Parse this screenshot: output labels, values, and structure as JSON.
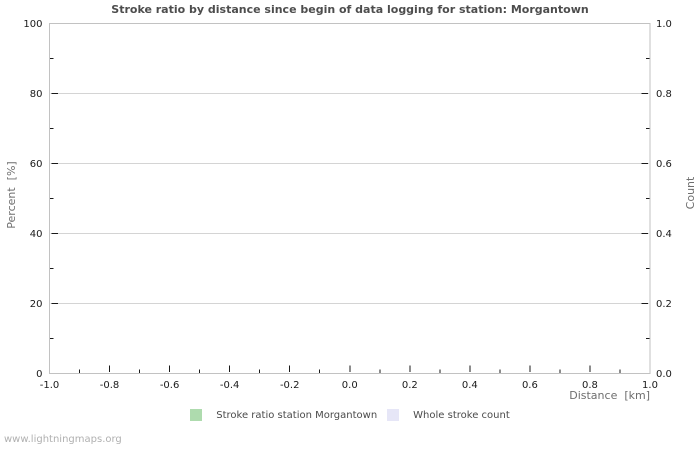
{
  "page": {
    "watermark": "www.lightningmaps.org",
    "background": "#ffffff"
  },
  "colors": {
    "title_text": "#4d4d4d",
    "tick_text": "#1a1a1a",
    "axis_label_text": "#6e6e6e",
    "legend_text": "#4a4a4a",
    "watermark_text": "#b0b0b0",
    "plot_border": "#c2c2c2",
    "gridline": "#d4d4d4",
    "tick_mark": "#1a1a1a",
    "stroke_ratio_green": "#aedbae",
    "whole_count_lavender": "#e6e6f7"
  },
  "chart_data": {
    "type": "line",
    "title": "Stroke ratio by distance since begin of data logging for station: Morgantown",
    "x_axis": {
      "label": "Distance  [km]",
      "min": -1.0,
      "max": 1.0,
      "major_ticks": [
        -1.0,
        -0.8,
        -0.6,
        -0.4,
        -0.2,
        0.0,
        0.2,
        0.4,
        0.6,
        0.8,
        1.0
      ],
      "tick_labels": [
        "-1.0",
        "-0.8",
        "-0.6",
        "-0.4",
        "-0.2",
        "0.0",
        "0.2",
        "0.4",
        "0.6",
        "0.8",
        "1.0"
      ],
      "minor_ticks": [
        -0.9,
        -0.7,
        -0.5,
        -0.3,
        -0.1,
        0.1,
        0.3,
        0.5,
        0.7,
        0.9
      ]
    },
    "y_axis_left": {
      "label": "Percent  [%]",
      "min": 0,
      "max": 100,
      "major_ticks": [
        0,
        20,
        40,
        60,
        80,
        100
      ],
      "tick_labels": [
        "0",
        "20",
        "40",
        "60",
        "80",
        "100"
      ],
      "minor_ticks": [
        10,
        30,
        50,
        70,
        90
      ]
    },
    "y_axis_right": {
      "label": "Count",
      "min": 0.0,
      "max": 1.0,
      "major_ticks": [
        0.0,
        0.2,
        0.4,
        0.6,
        0.8,
        1.0
      ],
      "tick_labels": [
        "0.0",
        "0.2",
        "0.4",
        "0.6",
        "0.8",
        "1.0"
      ],
      "minor_ticks": [
        0.1,
        0.3,
        0.5,
        0.7,
        0.9
      ]
    },
    "grid": {
      "horizontal_major": true,
      "vertical": false
    },
    "legend": [
      {
        "label": "Stroke ratio station Morgantown",
        "color": "#aedbae"
      },
      {
        "label": "Whole stroke count",
        "color": "#e6e6f7"
      }
    ],
    "series": [
      {
        "name": "Stroke ratio station Morgantown",
        "color": "#aedbae",
        "points": []
      },
      {
        "name": "Whole stroke count",
        "color": "#e6e6f7",
        "points": []
      }
    ]
  }
}
